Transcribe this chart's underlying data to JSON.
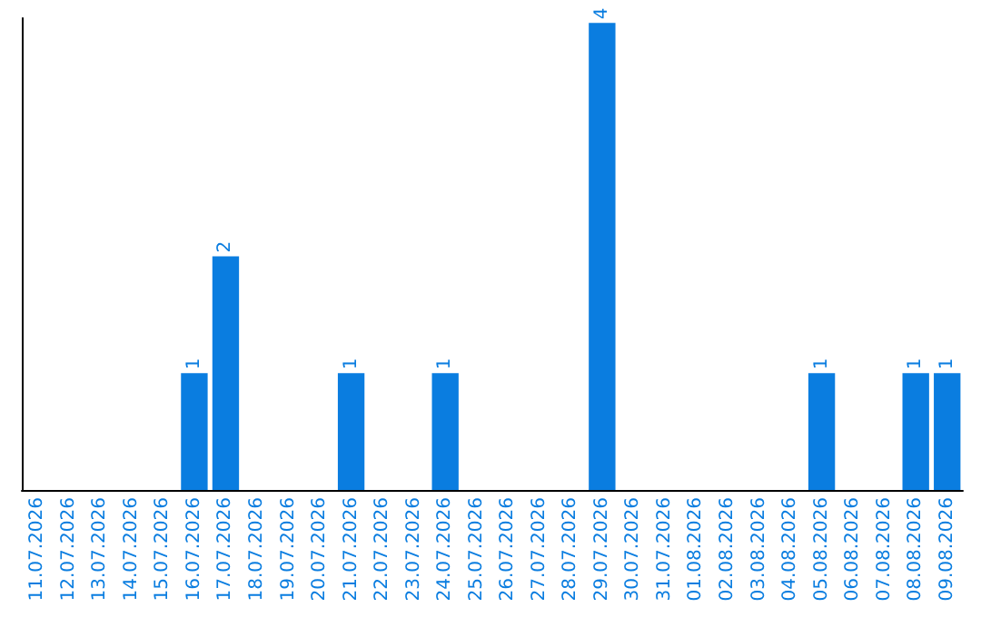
{
  "chart_data": {
    "type": "bar",
    "categories": [
      "11.07.2026",
      "12.07.2026",
      "13.07.2026",
      "14.07.2026",
      "15.07.2026",
      "16.07.2026",
      "17.07.2026",
      "18.07.2026",
      "19.07.2026",
      "20.07.2026",
      "21.07.2026",
      "22.07.2026",
      "23.07.2026",
      "24.07.2026",
      "25.07.2026",
      "26.07.2026",
      "27.07.2026",
      "28.07.2026",
      "29.07.2026",
      "30.07.2026",
      "31.07.2026",
      "01.08.2026",
      "02.08.2026",
      "03.08.2026",
      "04.08.2026",
      "05.08.2026",
      "06.08.2026",
      "07.08.2026",
      "08.08.2026",
      "09.08.2026"
    ],
    "values": [
      0,
      0,
      0,
      0,
      0,
      1,
      2,
      0,
      0,
      0,
      1,
      0,
      0,
      1,
      0,
      0,
      0,
      0,
      4,
      0,
      0,
      0,
      0,
      0,
      0,
      1,
      0,
      0,
      1,
      1
    ],
    "value_labels": [
      null,
      null,
      null,
      null,
      null,
      "1",
      "2",
      null,
      null,
      null,
      "1",
      null,
      null,
      "1",
      null,
      null,
      null,
      null,
      "4",
      null,
      null,
      null,
      null,
      null,
      null,
      "1",
      null,
      null,
      "1",
      "1"
    ],
    "color": "#0a7de0",
    "ylim": [
      0,
      4.04
    ],
    "tick_labels": "x"
  }
}
